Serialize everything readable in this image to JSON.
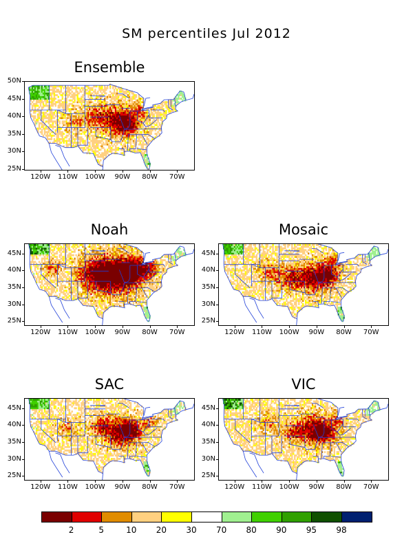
{
  "title": "SM percentiles Jul 2012",
  "panels": [
    {
      "name": "Ensemble",
      "lat_labels": [
        "50N",
        "45N",
        "40N",
        "35N",
        "30N",
        "25N"
      ],
      "lon_labels": [
        "120W",
        "110W",
        "100W",
        "90W",
        "80W",
        "70W"
      ]
    },
    {
      "name": "Noah",
      "lat_labels": [
        "45N",
        "40N",
        "35N",
        "30N",
        "25N"
      ],
      "lon_labels": [
        "120W",
        "110W",
        "100W",
        "90W",
        "80W",
        "70W"
      ]
    },
    {
      "name": "Mosaic",
      "lat_labels": [
        "45N",
        "40N",
        "35N",
        "30N",
        "25N"
      ],
      "lon_labels": [
        "120W",
        "110W",
        "100W",
        "90W",
        "80W",
        "70W"
      ]
    },
    {
      "name": "SAC",
      "lat_labels": [
        "45N",
        "40N",
        "35N",
        "30N",
        "25N"
      ],
      "lon_labels": [
        "120W",
        "110W",
        "100W",
        "90W",
        "80W",
        "70W"
      ]
    },
    {
      "name": "VIC",
      "lat_labels": [
        "45N",
        "40N",
        "35N",
        "30N",
        "25N"
      ],
      "lon_labels": [
        "120W",
        "110W",
        "100W",
        "90W",
        "80W",
        "70W"
      ]
    }
  ],
  "colorbar": {
    "colors": [
      "#7a0000",
      "#e00000",
      "#e08c00",
      "#ffd080",
      "#ffff00",
      "#ffffff",
      "#a0f090",
      "#40d000",
      "#30a000",
      "#105000",
      "#002070"
    ],
    "labels": [
      "2",
      "5",
      "10",
      "20",
      "30",
      "70",
      "80",
      "90",
      "95",
      "98"
    ]
  }
}
